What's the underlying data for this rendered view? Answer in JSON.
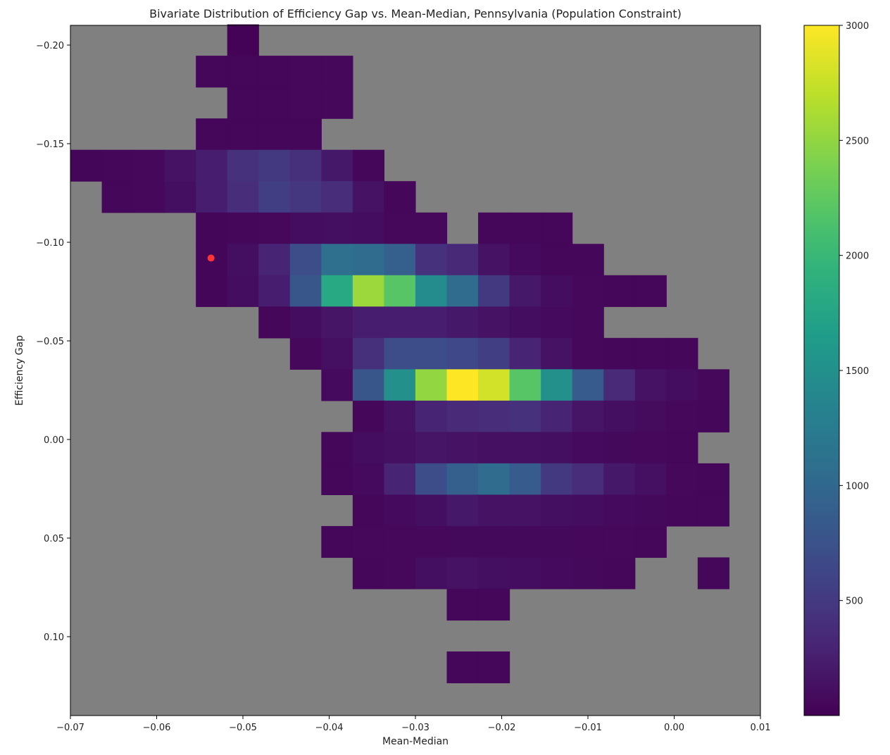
{
  "chart_data": {
    "type": "heatmap",
    "title": "Bivariate Distribution of Efficiency Gap vs. Mean-Median, Pennsylvania (Population Constraint)",
    "xlabel": "Mean-Median",
    "ylabel": "Efficiency Gap",
    "xlim": [
      -0.07,
      0.01
    ],
    "ylim": [
      -0.21,
      0.14
    ],
    "y_inverted": true,
    "grid": false,
    "background_color": "#808080",
    "colormap": "viridis",
    "color_range": [
      0,
      3000
    ],
    "x_ticks": [
      -0.07,
      -0.06,
      -0.05,
      -0.04,
      -0.03,
      -0.02,
      -0.01,
      0.0,
      0.01
    ],
    "x_tick_labels": [
      "−0.07",
      "−0.06",
      "−0.05",
      "−0.04",
      "−0.03",
      "−0.02",
      "−0.01",
      "0.00",
      "0.01"
    ],
    "y_ticks": [
      -0.2,
      -0.15,
      -0.1,
      -0.05,
      0.0,
      0.05,
      0.1
    ],
    "y_tick_labels": [
      "−0.20",
      "−0.15",
      "−0.10",
      "−0.05",
      "0.00",
      "0.05",
      "0.10"
    ],
    "colorbar": {
      "ticks": [
        500,
        1000,
        1500,
        2000,
        2500,
        3000
      ],
      "tick_labels": [
        "500",
        "1000",
        "1500",
        "2000",
        "2500",
        "3000"
      ],
      "range": [
        0,
        3000
      ]
    },
    "bins": {
      "x0": -0.07,
      "dx": 0.003636,
      "y0": -0.2105,
      "dy": 0.0159,
      "nx": 22,
      "ny": 22,
      "rows": [
        [
          0,
          [
            [
              5,
              20
            ]
          ]
        ],
        [
          1,
          [
            [
              4,
              50
            ],
            [
              5,
              50
            ],
            [
              6,
              50
            ],
            [
              7,
              60
            ],
            [
              8,
              60
            ]
          ]
        ],
        [
          2,
          [
            [
              5,
              50
            ],
            [
              6,
              50
            ],
            [
              7,
              60
            ],
            [
              8,
              60
            ]
          ]
        ],
        [
          3,
          [
            [
              4,
              50
            ],
            [
              5,
              50
            ],
            [
              6,
              50
            ],
            [
              7,
              50
            ]
          ]
        ],
        [
          4,
          [
            [
              0,
              40
            ],
            [
              1,
              50
            ],
            [
              2,
              60
            ],
            [
              3,
              150
            ],
            [
              4,
              250
            ],
            [
              5,
              420
            ],
            [
              6,
              500
            ],
            [
              7,
              400
            ],
            [
              8,
              200
            ],
            [
              9,
              50
            ]
          ]
        ],
        [
          5,
          [
            [
              1,
              50
            ],
            [
              2,
              60
            ],
            [
              3,
              120
            ],
            [
              4,
              250
            ],
            [
              5,
              380
            ],
            [
              6,
              550
            ],
            [
              7,
              480
            ],
            [
              8,
              380
            ],
            [
              9,
              150
            ],
            [
              10,
              50
            ]
          ]
        ],
        [
          6,
          [
            [
              4,
              40
            ],
            [
              5,
              50
            ],
            [
              6,
              60
            ],
            [
              7,
              100
            ],
            [
              8,
              120
            ],
            [
              9,
              100
            ],
            [
              10,
              60
            ],
            [
              11,
              60
            ],
            [
              13,
              50
            ],
            [
              14,
              50
            ],
            [
              15,
              50
            ]
          ]
        ],
        [
          7,
          [
            [
              4,
              40
            ],
            [
              5,
              120
            ],
            [
              6,
              300
            ],
            [
              7,
              700
            ],
            [
              8,
              1100
            ],
            [
              9,
              1050
            ],
            [
              10,
              900
            ],
            [
              11,
              420
            ],
            [
              12,
              340
            ],
            [
              13,
              150
            ],
            [
              14,
              80
            ],
            [
              15,
              50
            ],
            [
              16,
              50
            ]
          ]
        ],
        [
          8,
          [
            [
              4,
              40
            ],
            [
              5,
              100
            ],
            [
              6,
              250
            ],
            [
              7,
              800
            ],
            [
              8,
              1800
            ],
            [
              9,
              2550
            ],
            [
              10,
              2200
            ],
            [
              11,
              1450
            ],
            [
              12,
              1050
            ],
            [
              13,
              500
            ],
            [
              14,
              200
            ],
            [
              15,
              100
            ],
            [
              16,
              60
            ],
            [
              17,
              50
            ],
            [
              18,
              50
            ]
          ]
        ],
        [
          9,
          [
            [
              6,
              50
            ],
            [
              7,
              100
            ],
            [
              8,
              170
            ],
            [
              9,
              250
            ],
            [
              10,
              250
            ],
            [
              11,
              250
            ],
            [
              12,
              200
            ],
            [
              13,
              150
            ],
            [
              14,
              100
            ],
            [
              15,
              80
            ],
            [
              16,
              60
            ]
          ]
        ],
        [
          10,
          [
            [
              7,
              60
            ],
            [
              8,
              130
            ],
            [
              9,
              400
            ],
            [
              10,
              700
            ],
            [
              11,
              700
            ],
            [
              12,
              650
            ],
            [
              13,
              550
            ],
            [
              14,
              300
            ],
            [
              15,
              150
            ],
            [
              16,
              60
            ],
            [
              17,
              50
            ],
            [
              18,
              50
            ],
            [
              19,
              50
            ]
          ]
        ],
        [
          11,
          [
            [
              8,
              80
            ],
            [
              9,
              800
            ],
            [
              10,
              1500
            ],
            [
              11,
              2500
            ],
            [
              12,
              3000
            ],
            [
              13,
              2800
            ],
            [
              14,
              2200
            ],
            [
              15,
              1500
            ],
            [
              16,
              850
            ],
            [
              17,
              350
            ],
            [
              18,
              150
            ],
            [
              19,
              100
            ],
            [
              20,
              60
            ]
          ]
        ],
        [
          12,
          [
            [
              9,
              50
            ],
            [
              10,
              150
            ],
            [
              11,
              300
            ],
            [
              12,
              350
            ],
            [
              13,
              380
            ],
            [
              14,
              420
            ],
            [
              15,
              300
            ],
            [
              16,
              170
            ],
            [
              17,
              120
            ],
            [
              18,
              90
            ],
            [
              19,
              60
            ],
            [
              20,
              50
            ]
          ]
        ],
        [
          13,
          [
            [
              8,
              50
            ],
            [
              9,
              100
            ],
            [
              10,
              130
            ],
            [
              11,
              170
            ],
            [
              12,
              150
            ],
            [
              13,
              130
            ],
            [
              14,
              130
            ],
            [
              15,
              120
            ],
            [
              16,
              80
            ],
            [
              17,
              70
            ],
            [
              18,
              60
            ],
            [
              19,
              50
            ]
          ]
        ],
        [
          14,
          [
            [
              8,
              50
            ],
            [
              9,
              80
            ],
            [
              10,
              300
            ],
            [
              11,
              700
            ],
            [
              12,
              900
            ],
            [
              13,
              1050
            ],
            [
              14,
              850
            ],
            [
              15,
              500
            ],
            [
              16,
              380
            ],
            [
              17,
              200
            ],
            [
              18,
              130
            ],
            [
              19,
              60
            ],
            [
              20,
              50
            ]
          ]
        ],
        [
          15,
          [
            [
              9,
              50
            ],
            [
              10,
              80
            ],
            [
              11,
              120
            ],
            [
              12,
              200
            ],
            [
              13,
              150
            ],
            [
              14,
              150
            ],
            [
              15,
              120
            ],
            [
              16,
              100
            ],
            [
              17,
              80
            ],
            [
              18,
              70
            ],
            [
              19,
              50
            ],
            [
              20,
              50
            ]
          ]
        ],
        [
          16,
          [
            [
              8,
              50
            ],
            [
              9,
              60
            ],
            [
              10,
              60
            ],
            [
              11,
              60
            ],
            [
              12,
              70
            ],
            [
              13,
              70
            ],
            [
              14,
              70
            ],
            [
              15,
              70
            ],
            [
              16,
              60
            ],
            [
              17,
              60
            ],
            [
              18,
              50
            ]
          ]
        ],
        [
          17,
          [
            [
              9,
              50
            ],
            [
              10,
              60
            ],
            [
              11,
              120
            ],
            [
              12,
              150
            ],
            [
              13,
              120
            ],
            [
              14,
              100
            ],
            [
              15,
              80
            ],
            [
              16,
              70
            ],
            [
              17,
              50
            ],
            [
              20,
              50
            ]
          ]
        ],
        [
          18,
          [
            [
              12,
              50
            ],
            [
              13,
              50
            ]
          ]
        ],
        [
          20,
          [
            [
              12,
              50
            ],
            [
              13,
              50
            ]
          ]
        ]
      ]
    },
    "point": {
      "x": -0.0537,
      "y": -0.092,
      "color": "#ff3333"
    }
  }
}
